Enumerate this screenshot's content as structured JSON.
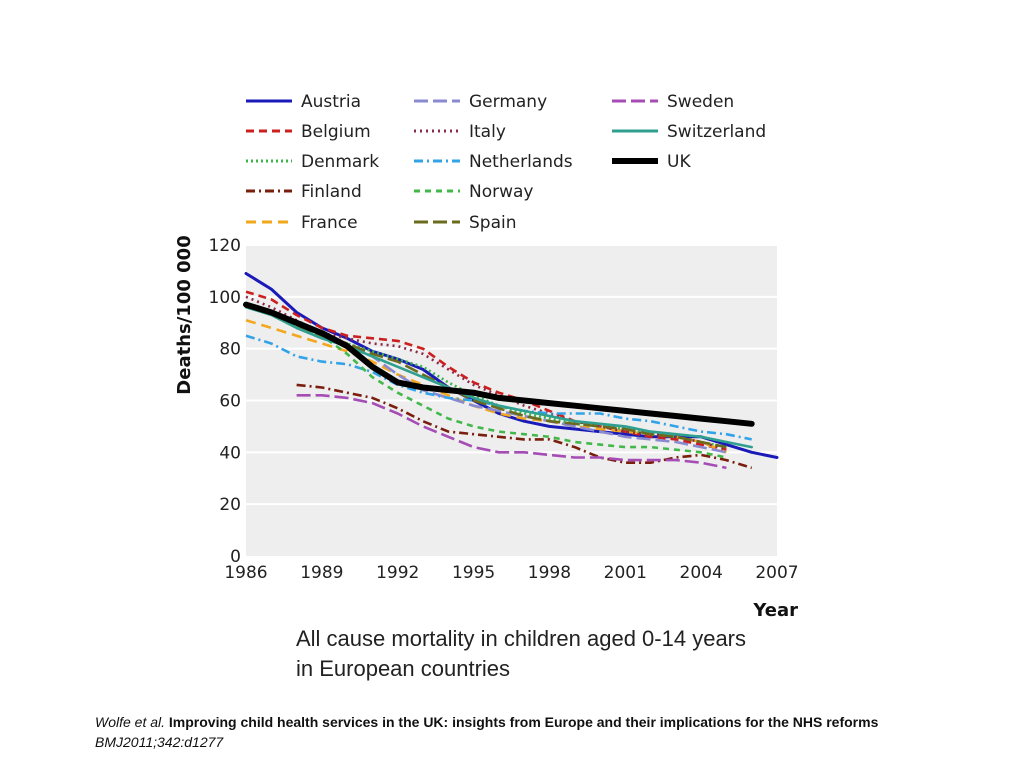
{
  "chart_data": {
    "type": "line",
    "title": "",
    "xlabel": "Year",
    "ylabel": "Deaths/100 000",
    "xlim": [
      1986,
      2007
    ],
    "ylim": [
      0,
      120
    ],
    "xticks": [
      1986,
      1989,
      1992,
      1995,
      1998,
      2001,
      2004,
      2007
    ],
    "yticks": [
      0,
      20,
      40,
      60,
      80,
      100,
      120
    ],
    "grid": true,
    "legend_position": "top",
    "series": [
      {
        "name": "Austria",
        "color": "#1a1ab8",
        "dash": "solid",
        "width": 3,
        "x": [
          1986,
          1987,
          1988,
          1989,
          1990,
          1991,
          1992,
          1993,
          1994,
          1995,
          1996,
          1997,
          1998,
          1999,
          2000,
          2001,
          2002,
          2003,
          2004,
          2005,
          2006,
          2007
        ],
        "y": [
          109,
          103,
          94,
          88,
          84,
          79,
          76,
          72,
          65,
          60,
          55,
          52,
          50,
          49,
          48,
          47,
          46,
          46,
          46,
          43,
          40,
          38
        ]
      },
      {
        "name": "Belgium",
        "color": "#cc1f1f",
        "dash": "8,5",
        "width": 2.6,
        "x": [
          1986,
          1987,
          1988,
          1989,
          1990,
          1991,
          1992,
          1993,
          1994,
          1995,
          1996,
          1997,
          1998,
          1999,
          2000,
          2001,
          2002,
          2003,
          2004,
          2005
        ],
        "y": [
          102,
          99,
          93,
          88,
          85,
          84,
          83,
          80,
          73,
          67,
          63,
          60,
          56,
          52,
          50,
          48,
          46,
          45,
          43,
          41
        ]
      },
      {
        "name": "Denmark",
        "color": "#3cb54a",
        "dash": "2,3",
        "width": 2.6,
        "x": [
          1986,
          1987,
          1988,
          1989,
          1990,
          1991,
          1992,
          1993,
          1994,
          1995,
          1996,
          1997,
          1998,
          1999,
          2000,
          2001,
          2002,
          2003,
          2004,
          2005
        ],
        "y": [
          97,
          94,
          89,
          85,
          82,
          79,
          76,
          73,
          67,
          62,
          58,
          55,
          53,
          51,
          50,
          49,
          47,
          46,
          44,
          42
        ]
      },
      {
        "name": "Finland",
        "color": "#7a1e0e",
        "dash": "9,4,2,4",
        "width": 2.6,
        "x": [
          1988,
          1989,
          1990,
          1991,
          1992,
          1993,
          1994,
          1995,
          1996,
          1997,
          1998,
          1999,
          2000,
          2001,
          2002,
          2003,
          2004,
          2005,
          2006
        ],
        "y": [
          66,
          65,
          63,
          61,
          57,
          52,
          48,
          47,
          46,
          45,
          45,
          42,
          38,
          36,
          36,
          38,
          39,
          37,
          34
        ]
      },
      {
        "name": "France",
        "color": "#f2a71e",
        "dash": "10,6",
        "width": 2.6,
        "x": [
          1986,
          1987,
          1988,
          1989,
          1990,
          1991,
          1992,
          1993,
          1994,
          1995,
          1996,
          1997,
          1998,
          1999,
          2000,
          2001,
          2002,
          2003,
          2004,
          2005
        ],
        "y": [
          91,
          88,
          85,
          82,
          79,
          75,
          70,
          66,
          62,
          58,
          55,
          53,
          52,
          50,
          49,
          48,
          47,
          46,
          44,
          40
        ]
      },
      {
        "name": "Germany",
        "color": "#8a8ad0",
        "dash": "14,5",
        "width": 2.6,
        "x": [
          1988,
          1989,
          1990,
          1991,
          1992,
          1993,
          1994,
          1995,
          1996,
          1997,
          1998,
          1999,
          2000,
          2001,
          2002,
          2003,
          2004,
          2005
        ],
        "y": [
          88,
          84,
          81,
          77,
          70,
          64,
          61,
          58,
          56,
          54,
          52,
          50,
          48,
          46,
          45,
          44,
          42,
          40
        ]
      },
      {
        "name": "Italy",
        "color": "#8b2a4a",
        "dash": "2,4",
        "width": 2.6,
        "x": [
          1986,
          1987,
          1988,
          1989,
          1990,
          1991,
          1992,
          1993,
          1994,
          1995,
          1996,
          1997,
          1998,
          1999,
          2000,
          2001,
          2002,
          2003,
          2004,
          2005
        ],
        "y": [
          100,
          96,
          91,
          86,
          84,
          82,
          81,
          78,
          72,
          66,
          62,
          58,
          55,
          52,
          50,
          48,
          47,
          46,
          44,
          41
        ]
      },
      {
        "name": "Netherlands",
        "color": "#33a3e8",
        "dash": "9,4,2,4",
        "width": 2.6,
        "x": [
          1986,
          1987,
          1988,
          1989,
          1990,
          1991,
          1992,
          1993,
          1994,
          1995,
          1996,
          1997,
          1998,
          1999,
          2000,
          2001,
          2002,
          2003,
          2004,
          2005,
          2006
        ],
        "y": [
          85,
          82,
          77,
          75,
          74,
          71,
          66,
          63,
          61,
          60,
          58,
          56,
          55,
          55,
          55,
          53,
          52,
          50,
          48,
          47,
          45
        ]
      },
      {
        "name": "Norway",
        "color": "#42b84a",
        "dash": "6,5",
        "width": 2.6,
        "x": [
          1988,
          1989,
          1990,
          1991,
          1992,
          1993,
          1994,
          1995,
          1996,
          1997,
          1998,
          1999,
          2000,
          2001,
          2002,
          2003,
          2004,
          2005
        ],
        "y": [
          88,
          85,
          78,
          69,
          63,
          58,
          53,
          50,
          48,
          47,
          46,
          44,
          43,
          42,
          42,
          41,
          40,
          38
        ]
      },
      {
        "name": "Spain",
        "color": "#6b6b1e",
        "dash": "14,5",
        "width": 2.6,
        "x": [
          1986,
          1987,
          1988,
          1989,
          1990,
          1991,
          1992,
          1993,
          1994,
          1995,
          1996,
          1997,
          1998,
          1999,
          2000,
          2001,
          2002,
          2003,
          2004,
          2005
        ],
        "y": [
          97,
          94,
          89,
          85,
          82,
          78,
          75,
          70,
          65,
          60,
          57,
          54,
          52,
          51,
          50,
          49,
          47,
          46,
          44,
          42
        ]
      },
      {
        "name": "Sweden",
        "color": "#a54db5",
        "dash": "14,5",
        "width": 2.6,
        "x": [
          1988,
          1989,
          1990,
          1991,
          1992,
          1993,
          1994,
          1995,
          1996,
          1997,
          1998,
          1999,
          2000,
          2001,
          2002,
          2003,
          2004,
          2005
        ],
        "y": [
          62,
          62,
          61,
          59,
          55,
          50,
          46,
          42,
          40,
          40,
          39,
          38,
          38,
          37,
          37,
          37,
          36,
          34
        ]
      },
      {
        "name": "Switzerland",
        "color": "#2f9f8f",
        "dash": "solid",
        "width": 2.6,
        "x": [
          1986,
          1987,
          1988,
          1989,
          1990,
          1991,
          1992,
          1993,
          1994,
          1995,
          1996,
          1997,
          1998,
          1999,
          2000,
          2001,
          2002,
          2003,
          2004,
          2005,
          2006
        ],
        "y": [
          96,
          93,
          88,
          84,
          81,
          77,
          73,
          69,
          65,
          61,
          58,
          56,
          54,
          52,
          51,
          50,
          48,
          47,
          46,
          44,
          42
        ]
      },
      {
        "name": "UK",
        "color": "#000000",
        "dash": "solid",
        "width": 6,
        "x": [
          1986,
          1987,
          1988,
          1989,
          1990,
          1991,
          1992,
          1993,
          1994,
          1995,
          1996,
          1997,
          1998,
          1999,
          2000,
          2001,
          2002,
          2003,
          2004,
          2005,
          2006
        ],
        "y": [
          97,
          94,
          90,
          86,
          81,
          73,
          67,
          65,
          64,
          63,
          61,
          60,
          59,
          58,
          57,
          56,
          55,
          54,
          53,
          52,
          51
        ]
      }
    ]
  },
  "caption": {
    "line1": "All cause mortality in children aged 0-14 years",
    "line2": "in European countries"
  },
  "citation": {
    "authors": "Wolfe et al.",
    "title": "Improving child health services in the UK: insights from Europe and their implications for the NHS reforms",
    "journal": "BMJ2011;342:d1277"
  },
  "colors": {
    "plot_background": "#eeeeee",
    "gridline": "#ffffff"
  }
}
